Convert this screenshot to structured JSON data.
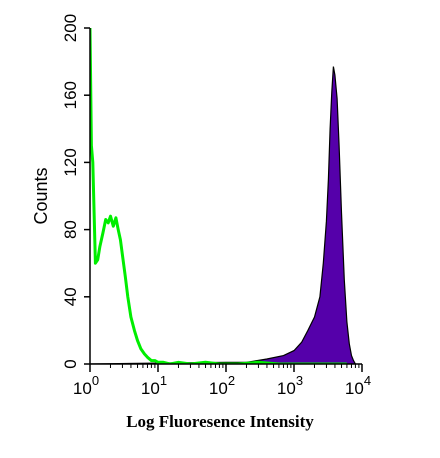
{
  "chart_data": {
    "type": "area",
    "title": "",
    "xlabel": "Log Fluoresence Intensity",
    "ylabel": "Counts",
    "x_scale": "log",
    "xlim": [
      1,
      10000
    ],
    "ylim": [
      0,
      200
    ],
    "x_ticks": [
      {
        "value": 1,
        "base": "10",
        "exp": "0"
      },
      {
        "value": 10,
        "base": "10",
        "exp": "1"
      },
      {
        "value": 100,
        "base": "10",
        "exp": "2"
      },
      {
        "value": 1000,
        "base": "10",
        "exp": "3"
      },
      {
        "value": 10000,
        "base": "10",
        "exp": "4"
      }
    ],
    "y_ticks": [
      0,
      40,
      80,
      120,
      160,
      200
    ],
    "grid": false,
    "series": [
      {
        "color": "#00ee00",
        "style": "line",
        "x": [
          1.0,
          1.05,
          1.1,
          1.15,
          1.2,
          1.3,
          1.4,
          1.55,
          1.7,
          1.85,
          2.0,
          2.2,
          2.4,
          2.6,
          2.8,
          3.0,
          3.3,
          3.6,
          4.0,
          4.5,
          5.0,
          5.6,
          6.3,
          7.0,
          8.0,
          9.0,
          10,
          12,
          15,
          20,
          30,
          50,
          80,
          150,
          300,
          600,
          1000,
          3000,
          6000
        ],
        "y": [
          200,
          130,
          120,
          90,
          60,
          62,
          70,
          78,
          86,
          84,
          88,
          82,
          87,
          80,
          74,
          65,
          52,
          40,
          28,
          20,
          14,
          9,
          6,
          4,
          2,
          2,
          1,
          1,
          0,
          1,
          0,
          1,
          0,
          0,
          1,
          0,
          0,
          0,
          0
        ]
      },
      {
        "color": "#5500aa",
        "style": "filled",
        "x": [
          1,
          100,
          200,
          400,
          700,
          1000,
          1300,
          1600,
          2000,
          2400,
          2700,
          3000,
          3200,
          3400,
          3600,
          3800,
          4000,
          4300,
          4600,
          5000,
          5500,
          6000,
          6500,
          7000,
          7500,
          8000
        ],
        "y": [
          0,
          1,
          1,
          3,
          5,
          8,
          13,
          20,
          28,
          40,
          60,
          85,
          110,
          140,
          162,
          177,
          172,
          158,
          130,
          90,
          50,
          25,
          12,
          5,
          2,
          0
        ]
      }
    ]
  }
}
